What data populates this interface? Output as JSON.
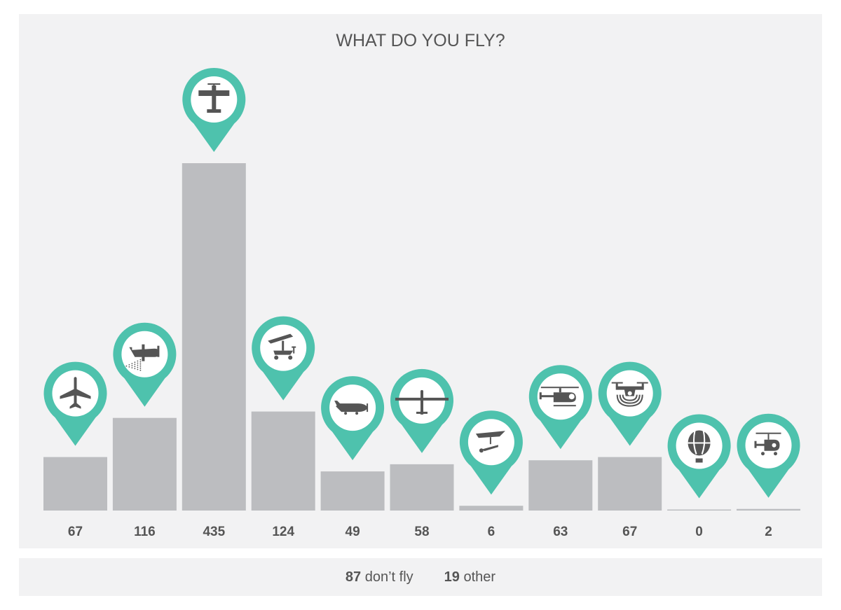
{
  "chart_data": {
    "type": "bar",
    "title": "WHAT DO YOU FLY?",
    "categories": [
      "airliner",
      "crop duster",
      "single-engine plane",
      "trike ultralight",
      "light sport plane",
      "glider",
      "hang glider",
      "helicopter",
      "drone",
      "hot air balloon",
      "gyrocopter"
    ],
    "values": [
      67,
      116,
      435,
      124,
      49,
      58,
      6,
      63,
      67,
      0,
      2
    ],
    "value_labels": [
      "67",
      "116",
      "435",
      "124",
      "49",
      "58",
      "6",
      "63",
      "67",
      "0",
      "2"
    ],
    "icons": [
      "airliner-icon",
      "crop-duster-icon",
      "small-plane-icon",
      "trike-icon",
      "light-plane-icon",
      "glider-icon",
      "hang-glider-icon",
      "helicopter-icon",
      "drone-icon",
      "balloon-icon",
      "gyrocopter-icon"
    ],
    "ylim": [
      0,
      435
    ],
    "grid": false,
    "colors": {
      "bar": "#bcbdc0",
      "pin": "#4ec2ad",
      "icon": "#555555",
      "label": "#555555",
      "background": "#f2f2f3"
    }
  },
  "footer": {
    "dont_fly_count": "87",
    "dont_fly_label": "don’t fly",
    "other_count": "19",
    "other_label": "other"
  }
}
